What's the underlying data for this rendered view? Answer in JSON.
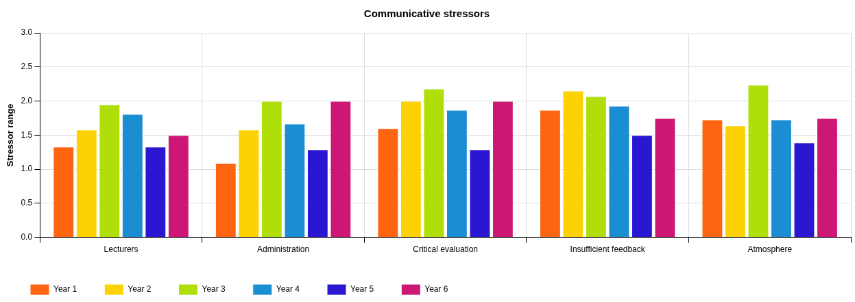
{
  "chart_data": {
    "type": "bar",
    "title": "Communicative stressors",
    "ylabel": "Stressor range",
    "categories": [
      "Lecturers",
      "Administration",
      "Critical evaluation",
      "Insufficient feedback",
      "Atmosphere"
    ],
    "series": [
      {
        "name": "Year 1",
        "color": "#ff6510",
        "values": [
          1.33,
          1.09,
          1.6,
          1.87,
          1.73
        ]
      },
      {
        "name": "Year 2",
        "color": "#fcd202",
        "values": [
          1.58,
          1.58,
          2.0,
          2.15,
          1.64
        ]
      },
      {
        "name": "Year 3",
        "color": "#b0de09",
        "values": [
          1.95,
          2.0,
          2.18,
          2.07,
          2.24
        ]
      },
      {
        "name": "Year 4",
        "color": "#1a8dd3",
        "values": [
          1.81,
          1.67,
          1.87,
          1.93,
          1.73
        ]
      },
      {
        "name": "Year 5",
        "color": "#2a17d1",
        "values": [
          1.33,
          1.29,
          1.29,
          1.5,
          1.39
        ]
      },
      {
        "name": "Year 6",
        "color": "#cd1774",
        "values": [
          1.5,
          2.0,
          2.0,
          1.75,
          1.75
        ]
      }
    ],
    "ylim": [
      0,
      3
    ],
    "yticks": [
      {
        "value": 0,
        "label": "0.0"
      },
      {
        "value": 0.5,
        "label": "0.5"
      },
      {
        "value": 1,
        "label": "1.0"
      },
      {
        "value": 1.5,
        "label": "1.5"
      },
      {
        "value": 2,
        "label": "2.0"
      },
      {
        "value": 2.5,
        "label": "2.5"
      },
      {
        "value": 3,
        "label": "3.0"
      }
    ],
    "grid": true,
    "legend": "bottom left"
  }
}
